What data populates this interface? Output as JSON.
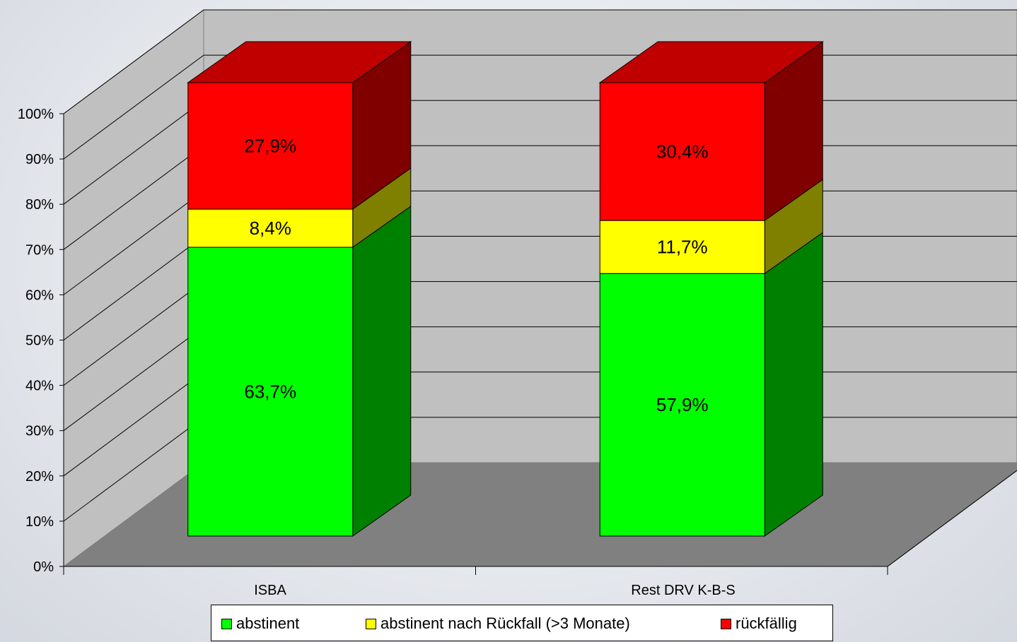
{
  "chart_data": {
    "type": "bar",
    "stacked": true,
    "percent_stacked": true,
    "three_d": true,
    "categories": [
      "ISBA",
      "Rest DRV K-B-S"
    ],
    "series": [
      {
        "name": "abstinent",
        "values": [
          63.7,
          57.9
        ],
        "labels": [
          "63,7%",
          "57,9%"
        ],
        "color": "#00ff00",
        "side_color": "#008000"
      },
      {
        "name": "abstinent nach Rückfall (>3 Monate)",
        "values": [
          8.4,
          11.7
        ],
        "labels": [
          "8,4%",
          "11,7%"
        ],
        "color": "#ffff00",
        "side_color": "#808000"
      },
      {
        "name": "rückfällig",
        "values": [
          27.9,
          30.4
        ],
        "labels": [
          "27,9%",
          "30,4%"
        ],
        "color": "#ff0000",
        "side_color": "#800000",
        "top_color": "#c00000"
      }
    ],
    "y_ticks": [
      "0%",
      "10%",
      "20%",
      "30%",
      "40%",
      "50%",
      "60%",
      "70%",
      "80%",
      "90%",
      "100%"
    ],
    "ylim": [
      0,
      100
    ],
    "grid": true,
    "legend_position": "bottom"
  }
}
